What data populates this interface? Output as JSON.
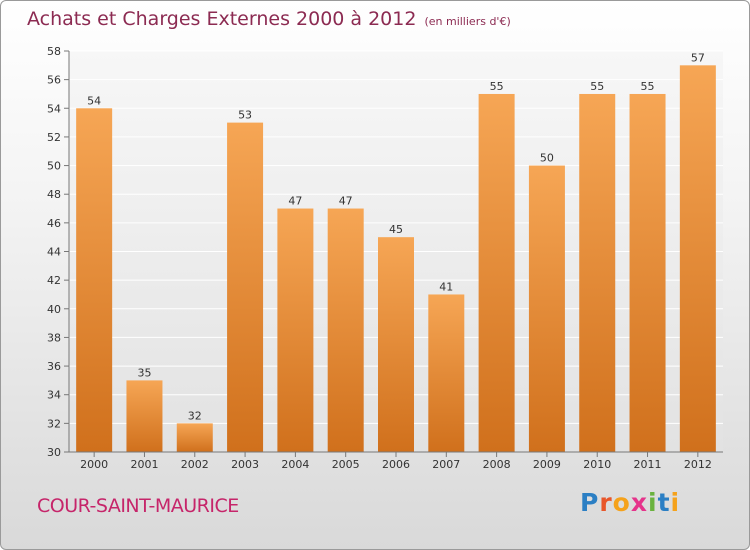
{
  "header": {
    "title": "Achats et Charges Externes 2000 à 2012",
    "unit": "(en milliers d'€)"
  },
  "footer": {
    "commune": "COUR-SAINT-MAURICE",
    "logo": "Proxiti"
  },
  "colors": {
    "bar_top": "#f6a655",
    "bar_bottom": "#d0701c",
    "title": "#8c2b52",
    "commune": "#c6256a"
  },
  "chart_data": {
    "type": "bar",
    "categories": [
      "2000",
      "2001",
      "2002",
      "2003",
      "2004",
      "2005",
      "2006",
      "2007",
      "2008",
      "2009",
      "2010",
      "2011",
      "2012"
    ],
    "values": [
      54,
      35,
      32,
      53,
      47,
      47,
      45,
      41,
      55,
      50,
      55,
      55,
      57
    ],
    "ylim": [
      30,
      58
    ],
    "yticks": [
      30,
      32,
      34,
      36,
      38,
      40,
      42,
      44,
      46,
      48,
      50,
      52,
      54,
      56,
      58
    ],
    "grid": true,
    "title": "Achats et Charges Externes 2000 à 2012",
    "xlabel": "",
    "ylabel": "(en milliers d'€)"
  }
}
